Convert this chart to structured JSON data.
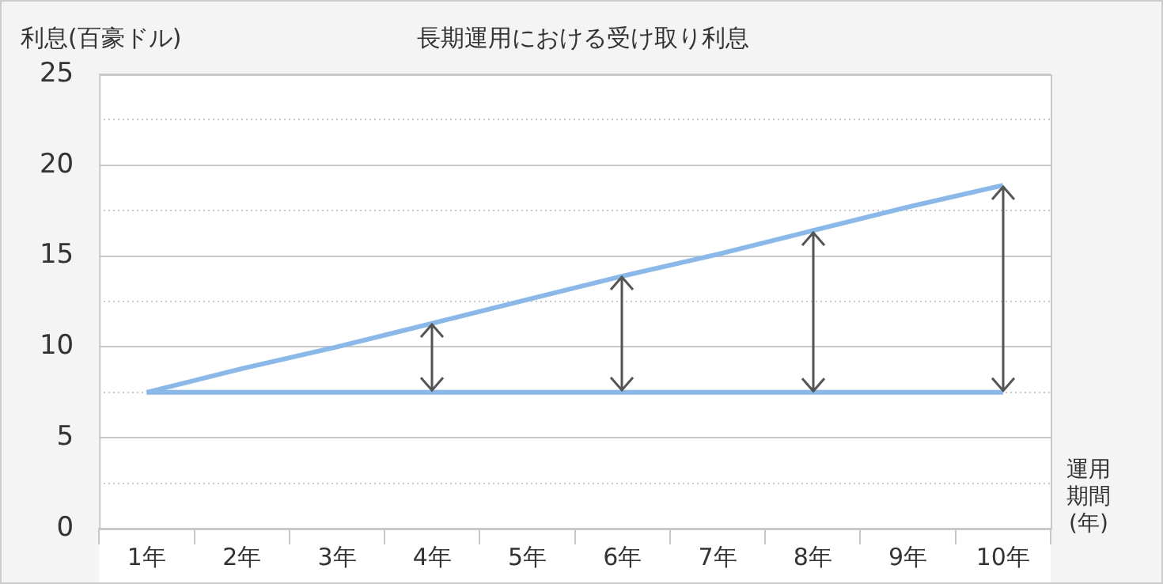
{
  "chart_data": {
    "type": "line",
    "title": "長期運用における受け取り利息",
    "ylabel": "利息(百豪ドル)",
    "xlabel": "運用期間(年)",
    "categories": [
      "1年",
      "2年",
      "3年",
      "4年",
      "5年",
      "6年",
      "7年",
      "8年",
      "9年",
      "10年"
    ],
    "series": [
      {
        "color": "#8ab8e8",
        "values": [
          7.5,
          7.5,
          7.5,
          7.5,
          7.5,
          7.5,
          7.5,
          7.5,
          7.5,
          7.5
        ]
      },
      {
        "color": "#8ab8e8",
        "values": [
          7.5,
          8.8,
          10.0,
          11.3,
          12.6,
          13.9,
          15.1,
          16.4,
          17.7,
          18.9
        ]
      }
    ],
    "ylim": [
      0,
      25
    ],
    "yticks": [
      0,
      {
        "value": 2.5,
        "label": null
      },
      5,
      {
        "value": 7.5,
        "label": null
      },
      10,
      {
        "value": 12.5,
        "label": null
      },
      15,
      {
        "value": 17.5,
        "label": null
      },
      20,
      {
        "value": 22.5,
        "label": null
      },
      25
    ],
    "grid": "y",
    "legend": false,
    "marker": "none",
    "line_style": "solid"
  }
}
